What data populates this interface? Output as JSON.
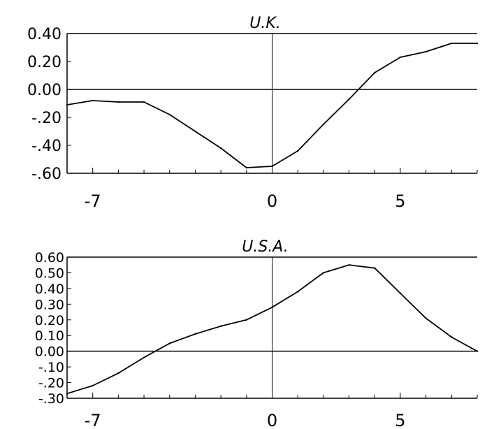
{
  "chart_data": [
    {
      "type": "line",
      "title": "U.K.",
      "xlabel": "",
      "ylabel": "",
      "xlim": [
        -8,
        8
      ],
      "ylim": [
        -0.6,
        0.4
      ],
      "xticks": [
        -7,
        0,
        5
      ],
      "yticks": [
        "0.40",
        "0.20",
        "0.00",
        "-.20",
        "-.40",
        "-.60"
      ],
      "ytick_values": [
        0.4,
        0.2,
        0.0,
        -0.2,
        -0.4,
        -0.6
      ],
      "x": [
        -8,
        -7,
        -6,
        -5,
        -4,
        -3,
        -2,
        -1,
        0,
        1,
        2,
        3,
        4,
        5,
        6,
        7,
        8
      ],
      "y": [
        -0.11,
        -0.08,
        -0.09,
        -0.09,
        -0.18,
        -0.3,
        -0.42,
        -0.56,
        -0.55,
        -0.44,
        -0.25,
        -0.07,
        0.12,
        0.23,
        0.27,
        0.33,
        0.33
      ],
      "grid": false
    },
    {
      "type": "line",
      "title": "U.S.A.",
      "xlabel": "",
      "ylabel": "",
      "xlim": [
        -8,
        8
      ],
      "ylim": [
        -0.3,
        0.6
      ],
      "xticks": [
        -7,
        0,
        5
      ],
      "yticks": [
        "0.60",
        "0.50",
        "0.40",
        "0.30",
        "0.20",
        "0.10",
        "0.00",
        "-.10",
        "-.20",
        "-.30"
      ],
      "ytick_values": [
        0.6,
        0.5,
        0.4,
        0.3,
        0.2,
        0.1,
        0.0,
        -0.1,
        -0.2,
        -0.3
      ],
      "x": [
        -8,
        -7,
        -6,
        -5,
        -4,
        -3,
        -2,
        -1,
        0,
        1,
        2,
        3,
        4,
        5,
        6,
        7,
        8
      ],
      "y": [
        -0.27,
        -0.22,
        -0.14,
        -0.04,
        0.05,
        0.11,
        0.16,
        0.2,
        0.28,
        0.38,
        0.5,
        0.55,
        0.53,
        0.37,
        0.21,
        0.09,
        0.0
      ],
      "grid": false
    }
  ]
}
